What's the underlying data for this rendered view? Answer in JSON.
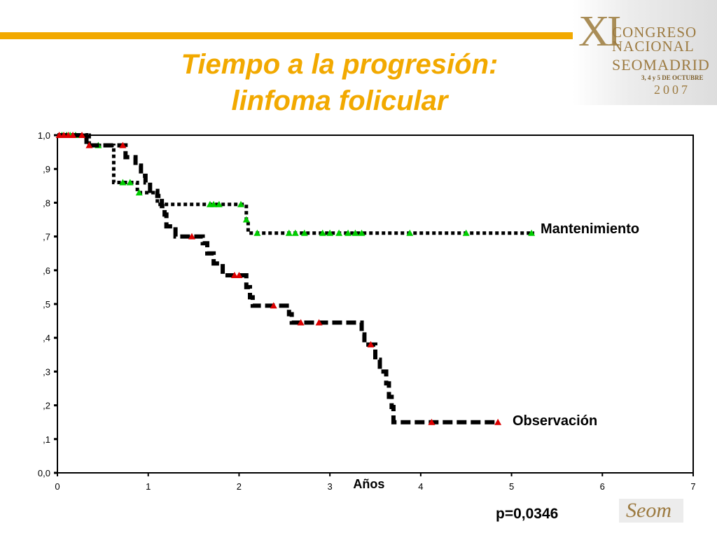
{
  "slide": {
    "title_line1": "Tiempo a la progresión:",
    "title_line2": "linfoma folicular",
    "title_color": "#f2a900",
    "bar_color": "#f2a900"
  },
  "logo": {
    "numeral": "XI",
    "line1": "CONGRESO",
    "line2": "NACIONAL",
    "line3": "SEOMADRID",
    "line4": "3, 4 y 5 DE OCTUBRE",
    "line5": "2007"
  },
  "footer_logo": {
    "text": "Seom"
  },
  "chart_data": {
    "type": "line",
    "title": "",
    "xlabel": "Años",
    "ylabel": "",
    "xlim": [
      0,
      7
    ],
    "ylim": [
      0,
      1
    ],
    "x_ticks": [
      "0",
      "1",
      "2",
      "3",
      "4",
      "5",
      "6",
      "7"
    ],
    "y_ticks": [
      "0,0",
      ",1",
      ",2",
      ",3",
      ",4",
      ",5",
      ",6",
      ",7",
      ",8",
      ",9",
      "1,0"
    ],
    "grid": false,
    "annotation": "p=0,0346",
    "series": [
      {
        "name": "Mantenimiento",
        "color": "#000000",
        "censor_color": "#00cc00",
        "step": [
          [
            0,
            1.0
          ],
          [
            0.35,
            0.97
          ],
          [
            0.62,
            0.86
          ],
          [
            0.88,
            0.83
          ],
          [
            1.1,
            0.795
          ],
          [
            2.08,
            0.75
          ],
          [
            2.1,
            0.71
          ],
          [
            5.25,
            0.71
          ]
        ],
        "censored": [
          [
            0.05,
            1.0
          ],
          [
            0.1,
            1.0
          ],
          [
            0.14,
            1.0
          ],
          [
            0.2,
            1.0
          ],
          [
            0.45,
            0.97
          ],
          [
            0.72,
            0.86
          ],
          [
            0.8,
            0.86
          ],
          [
            0.9,
            0.83
          ],
          [
            1.68,
            0.795
          ],
          [
            1.72,
            0.795
          ],
          [
            1.78,
            0.795
          ],
          [
            2.02,
            0.795
          ],
          [
            2.08,
            0.75
          ],
          [
            2.2,
            0.71
          ],
          [
            2.55,
            0.71
          ],
          [
            2.62,
            0.71
          ],
          [
            2.72,
            0.71
          ],
          [
            2.92,
            0.71
          ],
          [
            3.0,
            0.71
          ],
          [
            3.1,
            0.71
          ],
          [
            3.2,
            0.71
          ],
          [
            3.28,
            0.71
          ],
          [
            3.35,
            0.71
          ],
          [
            3.88,
            0.71
          ],
          [
            4.5,
            0.71
          ],
          [
            5.22,
            0.71
          ]
        ]
      },
      {
        "name": "Observación",
        "color": "#000000",
        "censor_color": "#dd0000",
        "step": [
          [
            0,
            1.0
          ],
          [
            0.32,
            0.97
          ],
          [
            0.72,
            0.97
          ],
          [
            0.75,
            0.935
          ],
          [
            0.86,
            0.91
          ],
          [
            0.92,
            0.88
          ],
          [
            0.97,
            0.86
          ],
          [
            1.02,
            0.835
          ],
          [
            1.1,
            0.82
          ],
          [
            1.15,
            0.79
          ],
          [
            1.18,
            0.765
          ],
          [
            1.2,
            0.73
          ],
          [
            1.3,
            0.7
          ],
          [
            1.6,
            0.68
          ],
          [
            1.65,
            0.65
          ],
          [
            1.72,
            0.62
          ],
          [
            1.82,
            0.585
          ],
          [
            2.08,
            0.55
          ],
          [
            2.12,
            0.52
          ],
          [
            2.15,
            0.495
          ],
          [
            2.55,
            0.47
          ],
          [
            2.58,
            0.445
          ],
          [
            3.35,
            0.41
          ],
          [
            3.38,
            0.38
          ],
          [
            3.5,
            0.335
          ],
          [
            3.55,
            0.3
          ],
          [
            3.62,
            0.265
          ],
          [
            3.65,
            0.225
          ],
          [
            3.68,
            0.195
          ],
          [
            3.7,
            0.15
          ],
          [
            4.85,
            0.15
          ]
        ],
        "censored": [
          [
            0.02,
            1.0
          ],
          [
            0.07,
            1.0
          ],
          [
            0.12,
            1.0
          ],
          [
            0.17,
            1.0
          ],
          [
            0.27,
            1.0
          ],
          [
            0.35,
            0.97
          ],
          [
            0.72,
            0.97
          ],
          [
            1.48,
            0.7
          ],
          [
            1.95,
            0.585
          ],
          [
            2.0,
            0.585
          ],
          [
            2.38,
            0.495
          ],
          [
            2.68,
            0.445
          ],
          [
            2.88,
            0.445
          ],
          [
            3.45,
            0.38
          ],
          [
            4.12,
            0.15
          ],
          [
            4.85,
            0.15
          ]
        ]
      }
    ]
  }
}
